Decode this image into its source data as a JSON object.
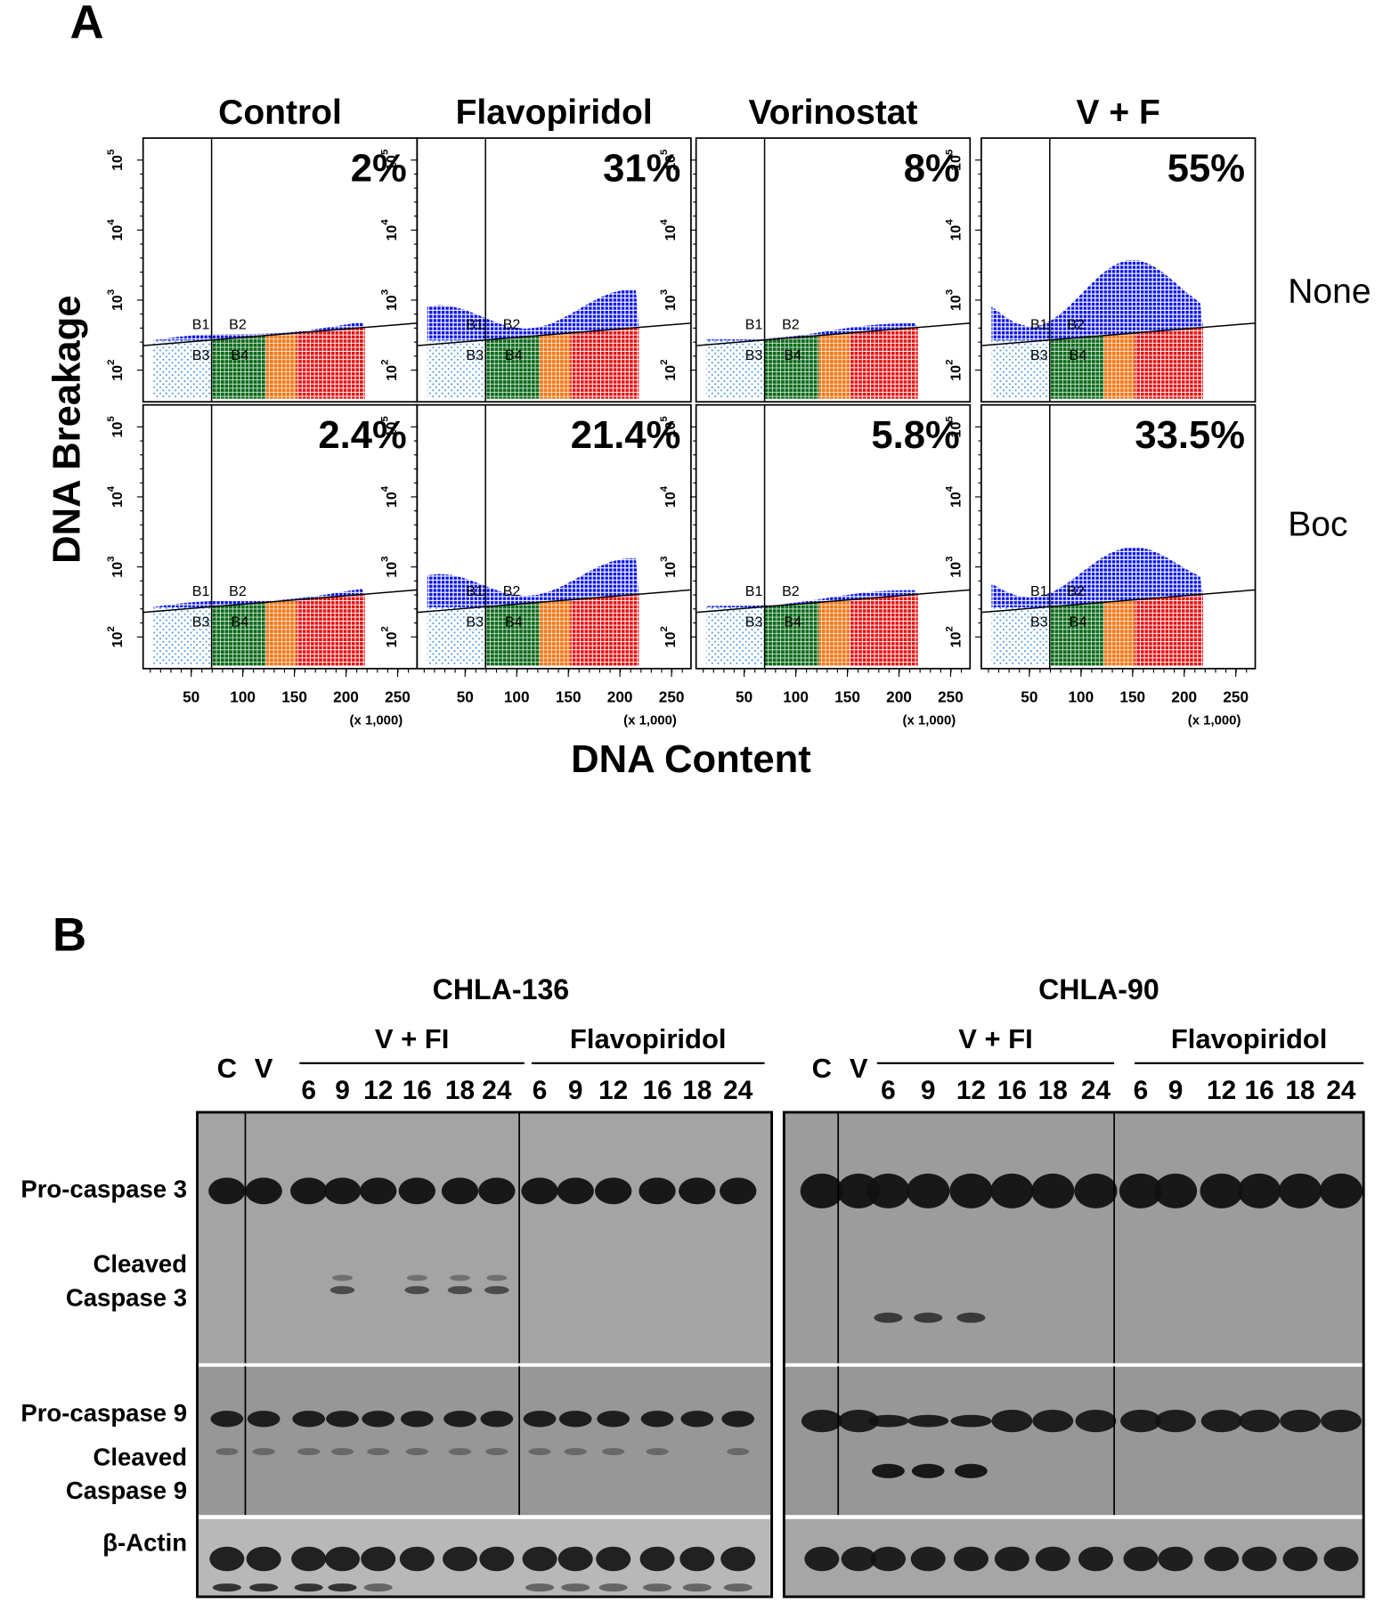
{
  "panel_a": {
    "label": "A",
    "y_axis_title": "DNA Breakage",
    "x_axis_title": "DNA Content",
    "columns": [
      "Control",
      "Flavopiridol",
      "Vorinostat",
      "V + F"
    ],
    "rows": [
      {
        "label": "None",
        "percentages": [
          "2%",
          "31%",
          "8%",
          "55%"
        ]
      },
      {
        "label": "Boc",
        "percentages": [
          "2.4%",
          "21.4%",
          "5.8%",
          "33.5%"
        ]
      }
    ],
    "x_tick_labels": [
      "50",
      "100",
      "150",
      "200",
      "250"
    ],
    "x_scale_note": "(x 1,000)",
    "y_tick_base": "10",
    "y_tick_exponents": [
      "2",
      "3",
      "4",
      "5"
    ],
    "gates": [
      "B1",
      "B2",
      "B3",
      "B4"
    ]
  },
  "panel_b": {
    "label": "B",
    "blots": [
      {
        "cell_line": "CHLA-136",
        "controls": [
          "C",
          "V"
        ],
        "groups": [
          {
            "label": "V + FI",
            "times": [
              "6",
              "9",
              "12",
              "16",
              "18",
              "24"
            ]
          },
          {
            "label": "Flavopiridol",
            "times": [
              "6",
              "9",
              "12",
              "16",
              "18",
              "24"
            ]
          }
        ]
      },
      {
        "cell_line": "CHLA-90",
        "controls": [
          "C",
          "V"
        ],
        "groups": [
          {
            "label": "V + FI",
            "times": [
              "6",
              "9",
              "12",
              "16",
              "18",
              "24"
            ]
          },
          {
            "label": "Flavopiridol",
            "times": [
              "6",
              "9",
              "12",
              "16",
              "18",
              "24"
            ]
          }
        ]
      }
    ],
    "row_labels": [
      [
        "Pro-caspase 3"
      ],
      [
        "Cleaved",
        "Caspase 3"
      ],
      [
        "Pro-caspase 9"
      ],
      [
        "Cleaved",
        "Caspase 9"
      ],
      [
        "β-Actin"
      ]
    ]
  }
}
